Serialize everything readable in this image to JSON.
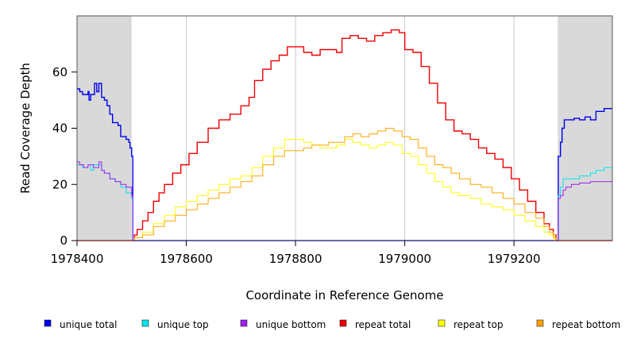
{
  "chart_data": {
    "type": "line",
    "title": "",
    "xlabel": "Coordinate in Reference Genome",
    "ylabel": "Read Coverage Depth",
    "xlim": [
      1978400,
      1979380
    ],
    "ylim": [
      0,
      80
    ],
    "x_ticks": [
      1978400,
      1978600,
      1978800,
      1979000,
      1979200
    ],
    "x_tick_labels": [
      "1978400",
      "1978600",
      "1978800",
      "1979000",
      "1979200"
    ],
    "y_ticks": [
      0,
      20,
      40,
      60
    ],
    "y_tick_labels": [
      "0",
      "20",
      "40",
      "60"
    ],
    "grid": "vertical lines at x ticks",
    "shaded_regions": [
      [
        1978400,
        1978500
      ],
      [
        1979280,
        1979380
      ]
    ],
    "legend": {
      "position": "bottom",
      "entries": [
        "unique total",
        "unique top",
        "unique bottom",
        "repeat total",
        "repeat top",
        "repeat bottom"
      ]
    },
    "series": [
      {
        "name": "unique total",
        "color": "#0000ee",
        "points": [
          [
            1978400,
            54
          ],
          [
            1978405,
            53
          ],
          [
            1978410,
            52
          ],
          [
            1978420,
            53
          ],
          [
            1978422,
            50
          ],
          [
            1978425,
            52
          ],
          [
            1978432,
            56
          ],
          [
            1978436,
            53
          ],
          [
            1978440,
            56
          ],
          [
            1978445,
            51
          ],
          [
            1978450,
            50
          ],
          [
            1978455,
            48
          ],
          [
            1978460,
            45
          ],
          [
            1978465,
            42
          ],
          [
            1978475,
            41
          ],
          [
            1978480,
            37
          ],
          [
            1978490,
            36
          ],
          [
            1978495,
            35
          ],
          [
            1978497,
            33
          ],
          [
            1978500,
            30
          ],
          [
            1978502,
            0
          ],
          [
            1979280,
            0
          ],
          [
            1979281,
            30
          ],
          [
            1979285,
            35
          ],
          [
            1979288,
            40
          ],
          [
            1979292,
            43
          ],
          [
            1979300,
            43
          ],
          [
            1979310,
            43.5
          ],
          [
            1979320,
            43
          ],
          [
            1979330,
            44
          ],
          [
            1979340,
            43
          ],
          [
            1979350,
            46
          ],
          [
            1979365,
            47
          ],
          [
            1979380,
            47
          ]
        ]
      },
      {
        "name": "unique top",
        "color": "#00e5ee",
        "points": [
          [
            1978400,
            27
          ],
          [
            1978410,
            26
          ],
          [
            1978420,
            27
          ],
          [
            1978425,
            25
          ],
          [
            1978430,
            27
          ],
          [
            1978440,
            27
          ],
          [
            1978445,
            25
          ],
          [
            1978450,
            24
          ],
          [
            1978460,
            22
          ],
          [
            1978470,
            21
          ],
          [
            1978480,
            19
          ],
          [
            1978490,
            17
          ],
          [
            1978500,
            15
          ],
          [
            1978502,
            0
          ],
          [
            1979280,
            0
          ],
          [
            1979281,
            16
          ],
          [
            1979285,
            19
          ],
          [
            1979290,
            22
          ],
          [
            1979300,
            22
          ],
          [
            1979320,
            23
          ],
          [
            1979340,
            24
          ],
          [
            1979350,
            25
          ],
          [
            1979365,
            26
          ],
          [
            1979380,
            26
          ]
        ]
      },
      {
        "name": "unique bottom",
        "color": "#a020f0",
        "points": [
          [
            1978400,
            28
          ],
          [
            1978405,
            27
          ],
          [
            1978412,
            26
          ],
          [
            1978420,
            27
          ],
          [
            1978430,
            26
          ],
          [
            1978440,
            28
          ],
          [
            1978445,
            25
          ],
          [
            1978450,
            24
          ],
          [
            1978460,
            22
          ],
          [
            1978470,
            21
          ],
          [
            1978480,
            20
          ],
          [
            1978490,
            19
          ],
          [
            1978500,
            16
          ],
          [
            1978502,
            0
          ],
          [
            1979280,
            0
          ],
          [
            1979281,
            15
          ],
          [
            1979285,
            16
          ],
          [
            1979290,
            18
          ],
          [
            1979295,
            19
          ],
          [
            1979305,
            20
          ],
          [
            1979320,
            20.5
          ],
          [
            1979340,
            21
          ],
          [
            1979360,
            21
          ],
          [
            1979380,
            21
          ]
        ]
      },
      {
        "name": "repeat total",
        "color": "#ee0000",
        "points": [
          [
            1978400,
            0
          ],
          [
            1978500,
            0
          ],
          [
            1978505,
            2
          ],
          [
            1978510,
            4
          ],
          [
            1978520,
            7
          ],
          [
            1978530,
            10
          ],
          [
            1978540,
            14
          ],
          [
            1978550,
            17
          ],
          [
            1978560,
            20
          ],
          [
            1978575,
            24
          ],
          [
            1978590,
            27
          ],
          [
            1978605,
            31
          ],
          [
            1978620,
            35
          ],
          [
            1978640,
            40
          ],
          [
            1978660,
            43
          ],
          [
            1978680,
            45
          ],
          [
            1978700,
            48
          ],
          [
            1978715,
            51
          ],
          [
            1978725,
            57
          ],
          [
            1978740,
            61
          ],
          [
            1978755,
            64
          ],
          [
            1978770,
            66
          ],
          [
            1978785,
            69
          ],
          [
            1978800,
            69
          ],
          [
            1978815,
            67
          ],
          [
            1978830,
            66
          ],
          [
            1978845,
            68
          ],
          [
            1978860,
            68
          ],
          [
            1978875,
            67
          ],
          [
            1978885,
            72
          ],
          [
            1978900,
            73
          ],
          [
            1978915,
            72
          ],
          [
            1978930,
            71
          ],
          [
            1978945,
            73
          ],
          [
            1978960,
            74
          ],
          [
            1978975,
            75
          ],
          [
            1978990,
            74
          ],
          [
            1979000,
            68
          ],
          [
            1979015,
            67
          ],
          [
            1979030,
            62
          ],
          [
            1979045,
            56
          ],
          [
            1979060,
            49
          ],
          [
            1979075,
            43
          ],
          [
            1979090,
            39
          ],
          [
            1979105,
            38
          ],
          [
            1979120,
            36
          ],
          [
            1979135,
            33
          ],
          [
            1979150,
            31
          ],
          [
            1979165,
            29
          ],
          [
            1979180,
            26
          ],
          [
            1979195,
            22
          ],
          [
            1979210,
            18
          ],
          [
            1979225,
            14
          ],
          [
            1979240,
            10
          ],
          [
            1979255,
            6
          ],
          [
            1979265,
            4
          ],
          [
            1979272,
            2
          ],
          [
            1979277,
            0
          ],
          [
            1979380,
            0
          ]
        ]
      },
      {
        "name": "repeat top",
        "color": "#ffff00",
        "points": [
          [
            1978400,
            0
          ],
          [
            1978500,
            0
          ],
          [
            1978505,
            1
          ],
          [
            1978520,
            3
          ],
          [
            1978540,
            6
          ],
          [
            1978560,
            9
          ],
          [
            1978580,
            12
          ],
          [
            1978600,
            14
          ],
          [
            1978620,
            16
          ],
          [
            1978640,
            18
          ],
          [
            1978660,
            20
          ],
          [
            1978680,
            22
          ],
          [
            1978700,
            23
          ],
          [
            1978720,
            26
          ],
          [
            1978740,
            30
          ],
          [
            1978760,
            33
          ],
          [
            1978780,
            36
          ],
          [
            1978800,
            36
          ],
          [
            1978815,
            35
          ],
          [
            1978830,
            34
          ],
          [
            1978845,
            33
          ],
          [
            1978860,
            33
          ],
          [
            1978875,
            34
          ],
          [
            1978890,
            36
          ],
          [
            1978905,
            35
          ],
          [
            1978920,
            34
          ],
          [
            1978935,
            33
          ],
          [
            1978950,
            34
          ],
          [
            1978965,
            35
          ],
          [
            1978980,
            34
          ],
          [
            1978995,
            31
          ],
          [
            1979010,
            30
          ],
          [
            1979025,
            27
          ],
          [
            1979040,
            24
          ],
          [
            1979055,
            21
          ],
          [
            1979070,
            19
          ],
          [
            1979085,
            17
          ],
          [
            1979100,
            16
          ],
          [
            1979120,
            15
          ],
          [
            1979140,
            13
          ],
          [
            1979160,
            12
          ],
          [
            1979180,
            11
          ],
          [
            1979200,
            9
          ],
          [
            1979220,
            7
          ],
          [
            1979240,
            5
          ],
          [
            1979255,
            3
          ],
          [
            1979265,
            2
          ],
          [
            1979275,
            0
          ],
          [
            1979380,
            0
          ]
        ]
      },
      {
        "name": "repeat bottom",
        "color": "#ffa500",
        "points": [
          [
            1978400,
            0
          ],
          [
            1978500,
            0
          ],
          [
            1978505,
            1
          ],
          [
            1978520,
            2
          ],
          [
            1978540,
            5
          ],
          [
            1978560,
            7
          ],
          [
            1978580,
            9
          ],
          [
            1978600,
            11
          ],
          [
            1978620,
            13
          ],
          [
            1978640,
            15
          ],
          [
            1978660,
            17
          ],
          [
            1978680,
            19
          ],
          [
            1978700,
            21
          ],
          [
            1978720,
            23
          ],
          [
            1978740,
            27
          ],
          [
            1978760,
            30
          ],
          [
            1978780,
            32
          ],
          [
            1978800,
            32
          ],
          [
            1978815,
            33
          ],
          [
            1978830,
            34
          ],
          [
            1978845,
            34
          ],
          [
            1978860,
            35
          ],
          [
            1978875,
            35
          ],
          [
            1978890,
            37
          ],
          [
            1978905,
            38
          ],
          [
            1978920,
            37
          ],
          [
            1978935,
            38
          ],
          [
            1978950,
            39
          ],
          [
            1978965,
            40
          ],
          [
            1978980,
            39
          ],
          [
            1978995,
            37
          ],
          [
            1979010,
            36
          ],
          [
            1979025,
            33
          ],
          [
            1979040,
            30
          ],
          [
            1979055,
            27
          ],
          [
            1979070,
            26
          ],
          [
            1979085,
            24
          ],
          [
            1979100,
            22
          ],
          [
            1979120,
            20
          ],
          [
            1979140,
            19
          ],
          [
            1979160,
            17
          ],
          [
            1979180,
            15
          ],
          [
            1979200,
            13
          ],
          [
            1979220,
            10
          ],
          [
            1979240,
            8
          ],
          [
            1979255,
            5
          ],
          [
            1979265,
            3
          ],
          [
            1979272,
            1
          ],
          [
            1979277,
            0
          ],
          [
            1979380,
            0
          ]
        ]
      }
    ]
  }
}
